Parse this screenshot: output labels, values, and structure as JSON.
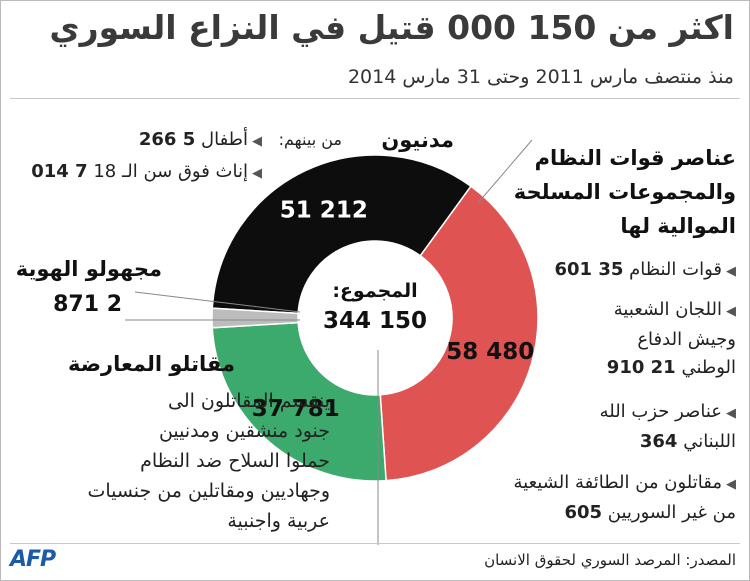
{
  "title": "اكثر من 150 000 قتيل في النزاع السوري",
  "subtitle": "منذ منتصف مارس 2011 وحتى 31 مارس 2014",
  "civilians": {
    "heading": "مدنيون",
    "among_them": "من بينهم:",
    "children_label": "أطفال",
    "children_value": "5 266",
    "women_label": "إناث فوق سن الـ 18",
    "women_value": "7 014"
  },
  "regime": {
    "heading_line1": "عناصر قوات النظام",
    "heading_line2": "والمجموعات المسلحة",
    "heading_line3": "الموالية لها",
    "forces_label": "قوات النظام",
    "forces_value": "35 601",
    "committees_line1": "اللجان الشعبية",
    "committees_line2": "وجيش الدفاع",
    "committees_line3": "الوطني",
    "committees_value": "21 910",
    "hezbollah_line1": "عناصر حزب الله",
    "hezbollah_line2": "اللبناني",
    "hezbollah_value": "364",
    "shia_line1": "مقاتلون من الطائفة الشيعية",
    "shia_line2": "من غير السوريين",
    "shia_value": "605"
  },
  "unknown": {
    "heading": "مجهولو الهوية",
    "value": "2 871"
  },
  "opposition": {
    "heading": "مقاتلو المعارضة",
    "line1": "ينقسم المقاتلون الى",
    "line2": "جنود منشقين ومدنيين",
    "line3": "حملوا السلاح ضد النظام",
    "line4": "وجهاديين ومقاتلين من جنسيات",
    "line5": "عربية واجنبية"
  },
  "center": {
    "label": "المجموع:",
    "total": "150 344"
  },
  "source": "المصدر: المرصد السوري لحقوق الانسان",
  "logo": "AFP",
  "chart_data": {
    "type": "pie",
    "total": 150344,
    "slices": [
      {
        "value": 51212,
        "label": "51 212",
        "color": "#0d0d0d",
        "label_color": "#ffffff"
      },
      {
        "value": 58480,
        "label": "58 480",
        "color": "#e05353",
        "label_color": "#111111"
      },
      {
        "value": 37781,
        "label": "37 781",
        "color": "#3caa6c",
        "label_color": "#111111"
      },
      {
        "value": 2871,
        "label": "2 871",
        "color": "#bcbcbc",
        "label_color": "#111111"
      }
    ]
  }
}
